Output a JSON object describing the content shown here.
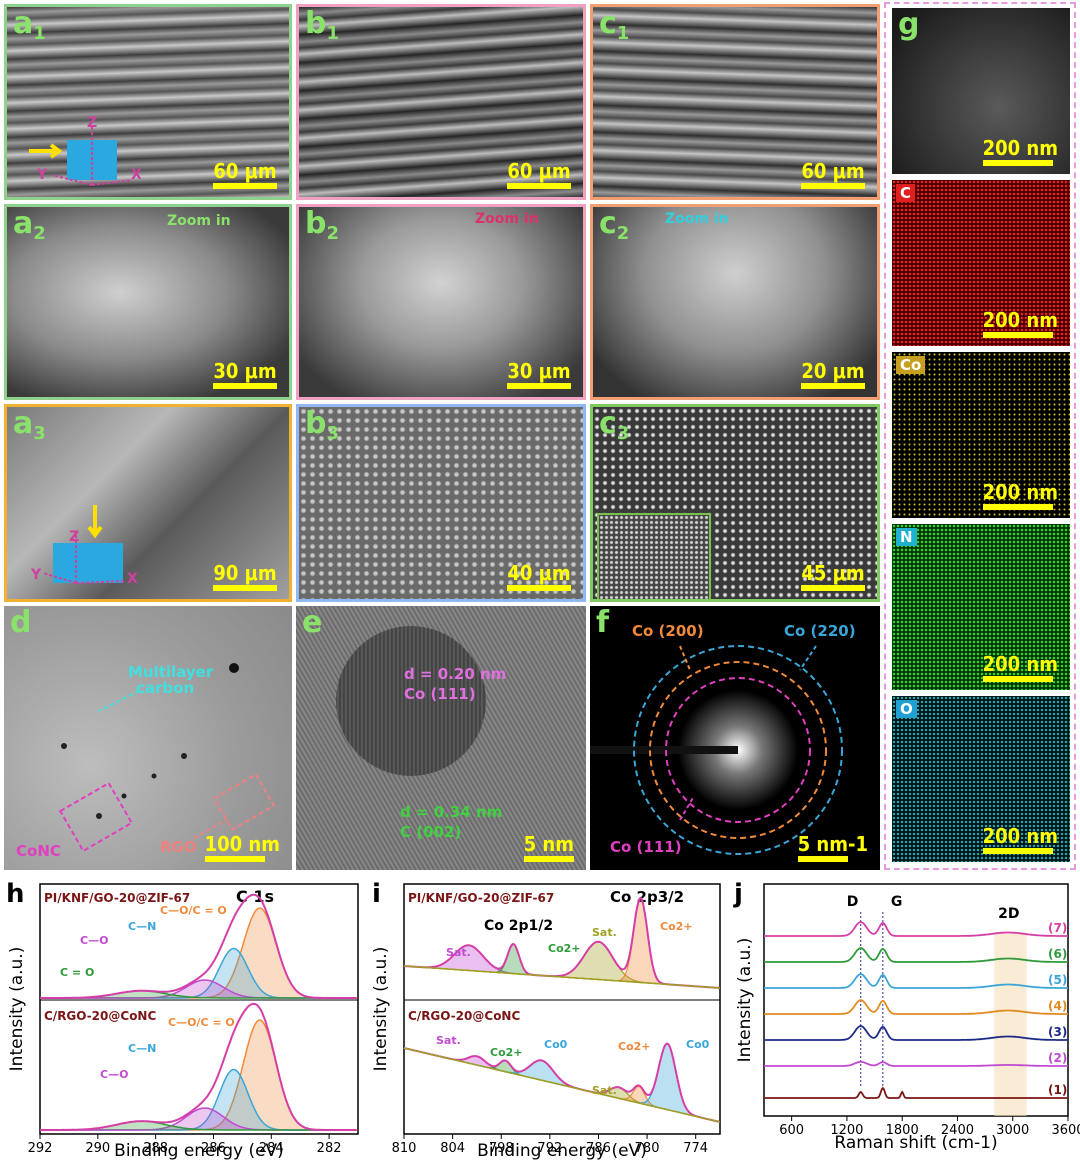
{
  "panels": {
    "a1": {
      "label": "a",
      "sub": "1",
      "scale": "60 μm"
    },
    "b1": {
      "label": "b",
      "sub": "1",
      "scale": "60 μm"
    },
    "c1": {
      "label": "c",
      "sub": "1",
      "scale": "60 μm"
    },
    "a2": {
      "label": "a",
      "sub": "2",
      "scale": "30 μm",
      "zoom": "Zoom in"
    },
    "b2": {
      "label": "b",
      "sub": "2",
      "scale": "30 μm",
      "zoom": "Zoom in"
    },
    "c2": {
      "label": "c",
      "sub": "2",
      "scale": "20 μm",
      "zoom": "Zoom in"
    },
    "a3": {
      "label": "a",
      "sub": "3",
      "scale": "90 μm"
    },
    "b3": {
      "label": "b",
      "sub": "3",
      "scale": "40 μm"
    },
    "c3": {
      "label": "c",
      "sub": "3",
      "scale": "45 μm"
    },
    "d": {
      "label": "d",
      "scale": "100 nm",
      "ann1": "Multilayer",
      "ann2": "carbon",
      "conc": "CoNC",
      "rgo": "RGO"
    },
    "e": {
      "label": "e",
      "scale": "5 nm",
      "d1": "d = 0.20 nm",
      "d1b": "Co (111)",
      "d2": "d = 0.34 nm",
      "d2b": "C (002)"
    },
    "f": {
      "label": "f",
      "scale": "5 nm-1",
      "r200": "Co (200)",
      "r220": "Co (220)",
      "r111": "Co (111)"
    },
    "g": {
      "label": "g",
      "scale": "200 nm",
      "maps": [
        "C",
        "Co",
        "N",
        "O"
      ]
    }
  },
  "axes_triad": {
    "z": "Z",
    "x": "X",
    "y": "Y"
  },
  "chart_data": [
    {
      "type": "line",
      "panel": "h",
      "title": "C 1s",
      "xlabel": "Binding energy (eV)",
      "ylabel": "Intensity (a.u.)",
      "xlim": [
        292,
        281
      ],
      "xticks": [
        "292",
        "290",
        "288",
        "286",
        "284",
        "282"
      ],
      "samples": [
        "PI/KNF/GO-20@ZIF-67",
        "C/RGO-20@CoNC"
      ],
      "top_components": [
        "C = O",
        "C—O",
        "C—N",
        "C—O/C = O"
      ],
      "bottom_components": [
        "C—O",
        "C—N",
        "C—O/C = O"
      ],
      "series": [
        {
          "name": "C—O/C = O",
          "peak": 284.4
        },
        {
          "name": "C—N",
          "peak": 285.3
        },
        {
          "name": "C—O",
          "peak": 286.3
        },
        {
          "name": "C = O",
          "peak": 288.5
        }
      ]
    },
    {
      "type": "line",
      "panel": "i",
      "title_top": "Co 2p3/2",
      "title_mid": "Co 2p1/2",
      "xlabel": "Binding energy (eV)",
      "ylabel": "Intensity (a.u.)",
      "xlim": [
        810,
        771
      ],
      "xticks": [
        "810",
        "804",
        "798",
        "792",
        "786",
        "780",
        "774"
      ],
      "samples": [
        "PI/KNF/GO-20@ZIF-67",
        "C/RGO-20@CoNC"
      ],
      "top_labels": [
        "Sat.",
        "Co2+",
        "Sat.",
        "Co2+"
      ],
      "bottom_labels": [
        "Sat.",
        "Co2+",
        "Co0",
        "Sat.",
        "Co2+",
        "Co0"
      ]
    },
    {
      "type": "line",
      "panel": "j",
      "xlabel": "Raman shift (cm-1)",
      "ylabel": "Intensity (a.u.)",
      "xlim": [
        300,
        3600
      ],
      "xticks": [
        "600",
        "1200",
        "1800",
        "2400",
        "3000",
        "3600"
      ],
      "band_labels": [
        "D",
        "G",
        "2D"
      ],
      "series": [
        {
          "name": "(7)",
          "color": "#d63ea7"
        },
        {
          "name": "(6)",
          "color": "#2e9a3a"
        },
        {
          "name": "(5)",
          "color": "#3aa6d8"
        },
        {
          "name": "(4)",
          "color": "#e08a20"
        },
        {
          "name": "(3)",
          "color": "#1d2a8a"
        },
        {
          "name": "(2)",
          "color": "#c04ad0"
        },
        {
          "name": "(1)",
          "color": "#7a1515"
        }
      ]
    }
  ]
}
